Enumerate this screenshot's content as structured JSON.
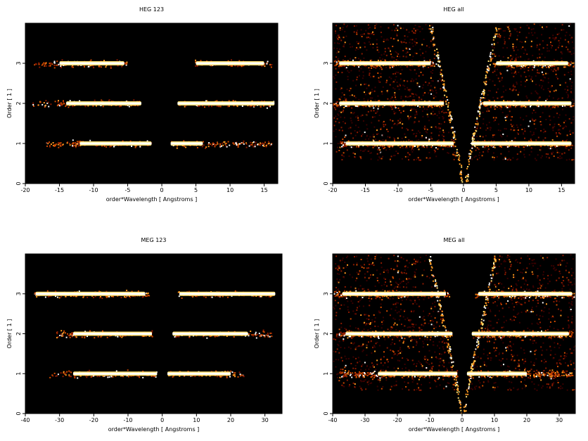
{
  "chart_data": [
    {
      "type": "heatmap",
      "title": "HEG 123",
      "xlabel": "order*Wavelength [ Angstroms ]",
      "ylabel": "Order [ 1 ]",
      "xlim": [
        -20,
        17
      ],
      "ylim": [
        0,
        4
      ],
      "xticks": [
        -20,
        -15,
        -10,
        -5,
        0,
        5,
        10,
        15
      ],
      "yticks": [
        0,
        1,
        2,
        3
      ],
      "bands": [
        {
          "order": 1,
          "ranges": [
            [
              -17,
              -1.5
            ],
            [
              1.3,
              16
            ]
          ],
          "core": [
            [
              -12,
              -1.5
            ],
            [
              1.3,
              6
            ]
          ]
        },
        {
          "order": 2,
          "ranges": [
            [
              -19,
              -3
            ],
            [
              2.3,
              16.5
            ]
          ],
          "core": [
            [
              -14,
              -3
            ],
            [
              2.3,
              16.5
            ]
          ]
        },
        {
          "order": 3,
          "ranges": [
            [
              -19,
              -5
            ],
            [
              4.8,
              16
            ]
          ],
          "core": [
            [
              -15,
              -5.5
            ],
            [
              5,
              15
            ]
          ]
        }
      ],
      "background": "none"
    },
    {
      "type": "heatmap",
      "title": "HEG all",
      "xlabel": "order*Wavelength [ Angstroms ]",
      "ylabel": "Order [ 1 ]",
      "xlim": [
        -20,
        17
      ],
      "ylim": [
        0,
        4
      ],
      "xticks": [
        -20,
        -15,
        -10,
        -5,
        0,
        5,
        10,
        15
      ],
      "yticks": [
        0,
        1,
        2,
        3
      ],
      "bands": [
        {
          "order": 1,
          "ranges": [
            [
              -19,
              -1.5
            ],
            [
              1.2,
              16.5
            ]
          ],
          "core": [
            [
              -18,
              -1.5
            ],
            [
              1.2,
              16.5
            ]
          ]
        },
        {
          "order": 2,
          "ranges": [
            [
              -20,
              -3
            ],
            [
              2.5,
              17
            ]
          ],
          "core": [
            [
              -19,
              -3
            ],
            [
              3,
              16.5
            ]
          ]
        },
        {
          "order": 3,
          "ranges": [
            [
              -20,
              -4.5
            ],
            [
              4.5,
              17
            ]
          ],
          "core": [
            [
              -19,
              -5
            ],
            [
              5,
              16
            ]
          ]
        }
      ],
      "background": "heavy"
    },
    {
      "type": "heatmap",
      "title": "MEG 123",
      "xlabel": "order*Wavelength [ Angstroms ]",
      "ylabel": "Order [ 1 ]",
      "xlim": [
        -40,
        35
      ],
      "ylim": [
        0,
        4
      ],
      "xticks": [
        -40,
        -30,
        -20,
        -10,
        0,
        10,
        20,
        30
      ],
      "yticks": [
        0,
        1,
        2,
        3
      ],
      "bands": [
        {
          "order": 1,
          "ranges": [
            [
              -33,
              -1.5
            ],
            [
              1.5,
              24
            ]
          ],
          "core": [
            [
              -26,
              -1.5
            ],
            [
              1.5,
              20
            ]
          ]
        },
        {
          "order": 2,
          "ranges": [
            [
              -31,
              -3
            ],
            [
              3,
              32
            ]
          ],
          "core": [
            [
              -26,
              -3
            ],
            [
              3,
              25
            ]
          ]
        },
        {
          "order": 3,
          "ranges": [
            [
              -38,
              -4
            ],
            [
              4,
              33
            ]
          ],
          "core": [
            [
              -37,
              -5
            ],
            [
              5,
              33
            ]
          ]
        }
      ],
      "background": "none"
    },
    {
      "type": "heatmap",
      "title": "MEG all",
      "xlabel": "order*Wavelength [ Angstroms ]",
      "ylabel": "Order [ 1 ]",
      "xlim": [
        -40,
        35
      ],
      "ylim": [
        0,
        4
      ],
      "xticks": [
        -40,
        -30,
        -20,
        -10,
        0,
        10,
        20,
        30
      ],
      "yticks": [
        0,
        1,
        2,
        3
      ],
      "bands": [
        {
          "order": 1,
          "ranges": [
            [
              -38,
              -1.5
            ],
            [
              1.5,
              34
            ]
          ],
          "core": [
            [
              -26,
              -1.5
            ],
            [
              1.5,
              20
            ]
          ]
        },
        {
          "order": 2,
          "ranges": [
            [
              -39,
              -3
            ],
            [
              3,
              34
            ]
          ],
          "core": [
            [
              -36,
              -3
            ],
            [
              3,
              33
            ]
          ]
        },
        {
          "order": 3,
          "ranges": [
            [
              -40,
              -4
            ],
            [
              4,
              35
            ]
          ],
          "core": [
            [
              -37,
              -5
            ],
            [
              5,
              34
            ]
          ]
        }
      ],
      "background": "heavy"
    }
  ],
  "colors": {
    "plot_background": "#000000",
    "hot": [
      "#3a0000",
      "#8b1a00",
      "#d04a00",
      "#ff9a20",
      "#ffe070",
      "#ffffff"
    ]
  }
}
